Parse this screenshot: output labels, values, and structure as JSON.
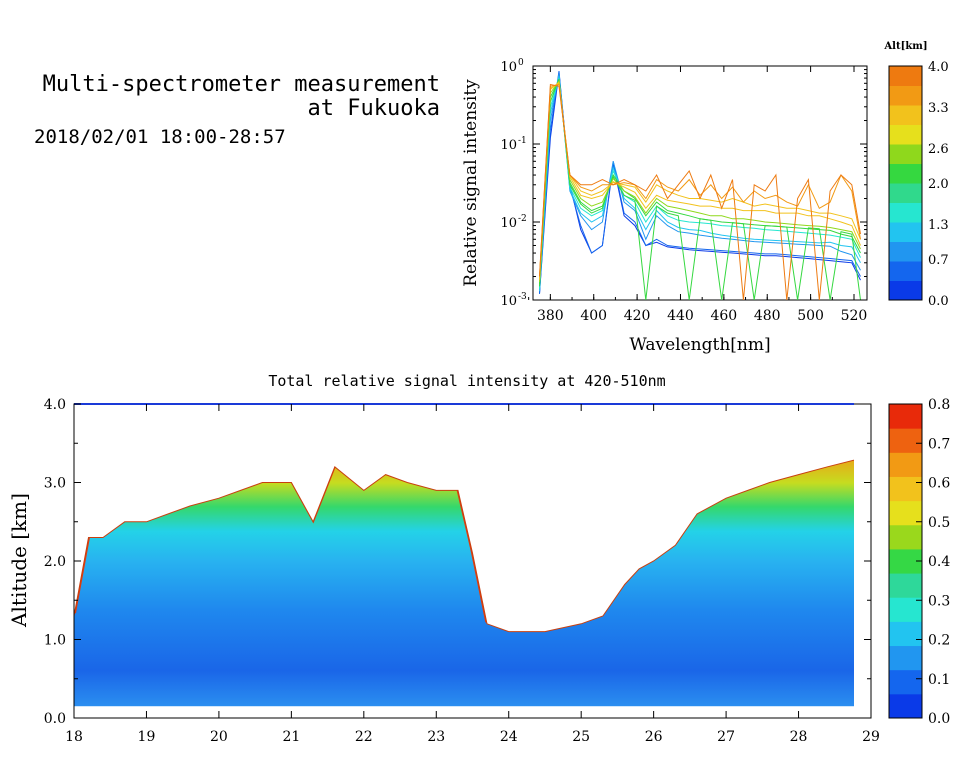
{
  "header": {
    "title_line1": "Multi-spectrometer measurement",
    "title_line2": "at Fukuoka",
    "timestamp": "2018/02/01 18:00-28:57"
  },
  "colors": {
    "alt_scale": [
      "#0a3ae8",
      "#1466ee",
      "#2196f0",
      "#22c4f0",
      "#26e6d0",
      "#30d98c",
      "#35d840",
      "#8fd81c",
      "#e6e01c",
      "#f2c21c",
      "#f29a14",
      "#ee7a10"
    ],
    "intensity_scale": [
      "#0a3ae8",
      "#1466ee",
      "#2196f0",
      "#22c4f0",
      "#26e6d0",
      "#2ed89a",
      "#35d845",
      "#9ad81c",
      "#e6e01c",
      "#f2c21c",
      "#f29a14",
      "#ee6210",
      "#e82a0a"
    ]
  },
  "chart_data": [
    {
      "type": "line",
      "title": "",
      "xlabel": "Wavelength[nm]",
      "ylabel": "Relative signal intensity",
      "yscale": "log",
      "xlim": [
        372,
        526
      ],
      "ylim": [
        0.001,
        1
      ],
      "x_ticks": [
        "380",
        "400",
        "420",
        "440",
        "460",
        "480",
        "500",
        "520"
      ],
      "y_ticks": [
        "10",
        "10",
        "10",
        "10"
      ],
      "y_tick_exponents": [
        "-3",
        "-2",
        "-1",
        "0"
      ],
      "colorbar": {
        "label": "Alt[km]",
        "ticks": [
          "0.0",
          "0.7",
          "1.3",
          "2.0",
          "2.6",
          "3.3",
          "4.0"
        ],
        "range": [
          0.0,
          4.0
        ]
      },
      "x": [
        375,
        380,
        384,
        389,
        394,
        399,
        404,
        409,
        414,
        419,
        424,
        429,
        434,
        439,
        444,
        449,
        454,
        459,
        464,
        469,
        474,
        479,
        484,
        489,
        494,
        499,
        504,
        509,
        514,
        519,
        523
      ],
      "series": [
        {
          "altitude": 0.2,
          "values": [
            0.0012,
            0.12,
            0.82,
            0.03,
            0.008,
            0.004,
            0.005,
            0.055,
            0.012,
            0.009,
            0.005,
            0.0055,
            0.0048,
            0.0046,
            0.0044,
            0.0043,
            0.0042,
            0.0041,
            0.004,
            0.0039,
            0.0038,
            0.0037,
            0.0037,
            0.0036,
            0.0035,
            0.0034,
            0.0033,
            0.0032,
            0.0031,
            0.003,
            0.0018
          ]
        },
        {
          "altitude": 0.5,
          "values": [
            0.0012,
            0.15,
            0.86,
            0.028,
            0.009,
            0.004,
            0.005,
            0.06,
            0.013,
            0.01,
            0.005,
            0.006,
            0.005,
            0.0048,
            0.0046,
            0.0045,
            0.0044,
            0.0043,
            0.0042,
            0.0041,
            0.004,
            0.0039,
            0.0039,
            0.0038,
            0.0037,
            0.0036,
            0.0035,
            0.0034,
            0.0033,
            0.0032,
            0.002
          ]
        },
        {
          "altitude": 0.9,
          "values": [
            0.0013,
            0.2,
            0.8,
            0.025,
            0.012,
            0.008,
            0.01,
            0.06,
            0.018,
            0.014,
            0.006,
            0.012,
            0.009,
            0.0075,
            0.0072,
            0.0068,
            0.0065,
            0.0062,
            0.006,
            0.0058,
            0.0056,
            0.0055,
            0.0054,
            0.0053,
            0.0052,
            0.0051,
            0.005,
            0.0049,
            0.0042,
            0.0038,
            0.0024
          ]
        },
        {
          "altitude": 1.3,
          "values": [
            0.0013,
            0.25,
            0.75,
            0.026,
            0.013,
            0.01,
            0.012,
            0.05,
            0.02,
            0.015,
            0.008,
            0.014,
            0.01,
            0.0085,
            0.008,
            0.0078,
            0.0072,
            0.0068,
            0.0065,
            0.0062,
            0.006,
            0.0059,
            0.0058,
            0.0057,
            0.0056,
            0.0055,
            0.0054,
            0.0055,
            0.005,
            0.0048,
            0.003
          ]
        },
        {
          "altitude": 1.6,
          "values": [
            0.0014,
            0.3,
            0.7,
            0.028,
            0.015,
            0.012,
            0.014,
            0.045,
            0.022,
            0.018,
            0.01,
            0.016,
            0.012,
            0.0105,
            0.01,
            0.0098,
            0.0095,
            0.009,
            0.0088,
            0.0085,
            0.0083,
            0.008,
            0.0078,
            0.0076,
            0.0074,
            0.0072,
            0.007,
            0.0068,
            0.0064,
            0.006,
            0.0035
          ]
        },
        {
          "altitude": 2.0,
          "values": [
            0.0015,
            0.35,
            0.68,
            0.03,
            0.017,
            0.013,
            0.015,
            0.04,
            0.025,
            0.02,
            0.012,
            0.018,
            0.014,
            0.013,
            0.012,
            0.011,
            0.0105,
            0.01,
            0.0098,
            0.0095,
            0.0092,
            0.009,
            0.0088,
            0.0086,
            0.0084,
            0.0082,
            0.008,
            0.0078,
            0.007,
            0.0065,
            0.004
          ]
        },
        {
          "altitude": 2.3,
          "values": [
            0.0016,
            0.4,
            0.66,
            0.032,
            0.018,
            0.014,
            0.016,
            0.038,
            0.022,
            0.019,
            0.001,
            0.016,
            0.013,
            0.012,
            0.001,
            0.011,
            0.0105,
            0.001,
            0.0098,
            0.0095,
            0.001,
            0.009,
            0.0088,
            0.0086,
            0.001,
            0.0084,
            0.0082,
            0.001,
            0.0075,
            0.007,
            0.001
          ]
        },
        {
          "altitude": 2.6,
          "values": [
            0.0017,
            0.45,
            0.64,
            0.035,
            0.02,
            0.016,
            0.018,
            0.036,
            0.025,
            0.021,
            0.013,
            0.02,
            0.016,
            0.015,
            0.014,
            0.013,
            0.012,
            0.012,
            0.011,
            0.011,
            0.0105,
            0.01,
            0.0098,
            0.0095,
            0.0092,
            0.009,
            0.0088,
            0.0085,
            0.008,
            0.0075,
            0.0045
          ]
        },
        {
          "altitude": 3.0,
          "values": [
            0.0018,
            0.5,
            0.62,
            0.038,
            0.022,
            0.02,
            0.022,
            0.033,
            0.028,
            0.024,
            0.015,
            0.022,
            0.019,
            0.018,
            0.017,
            0.016,
            0.016,
            0.015,
            0.015,
            0.014,
            0.014,
            0.014,
            0.013,
            0.013,
            0.013,
            0.012,
            0.012,
            0.011,
            0.01,
            0.009,
            0.005
          ]
        },
        {
          "altitude": 3.3,
          "values": [
            0.0019,
            0.52,
            0.6,
            0.04,
            0.025,
            0.022,
            0.025,
            0.032,
            0.03,
            0.028,
            0.018,
            0.03,
            0.025,
            0.022,
            0.02,
            0.02,
            0.019,
            0.018,
            0.02,
            0.018,
            0.016,
            0.017,
            0.016,
            0.015,
            0.015,
            0.014,
            0.013,
            0.013,
            0.012,
            0.011,
            0.006
          ]
        },
        {
          "altitude": 3.6,
          "values": [
            0.002,
            0.55,
            0.58,
            0.04,
            0.028,
            0.025,
            0.03,
            0.03,
            0.032,
            0.03,
            0.02,
            0.035,
            0.028,
            0.025,
            0.035,
            0.022,
            0.03,
            0.02,
            0.028,
            0.018,
            0.025,
            0.02,
            0.022,
            0.018,
            0.016,
            0.03,
            0.015,
            0.018,
            0.04,
            0.025,
            0.006
          ]
        },
        {
          "altitude": 3.9,
          "values": [
            0.002,
            0.58,
            0.55,
            0.04,
            0.03,
            0.03,
            0.035,
            0.03,
            0.035,
            0.03,
            0.025,
            0.04,
            0.02,
            0.03,
            0.045,
            0.02,
            0.04,
            0.015,
            0.035,
            0.001,
            0.03,
            0.025,
            0.04,
            0.001,
            0.02,
            0.035,
            0.001,
            0.025,
            0.04,
            0.03,
            0.007
          ]
        }
      ]
    },
    {
      "type": "heatmap",
      "title": "Total relative signal intensity at 420-510nm",
      "xlabel": "",
      "ylabel": "Altitude [km]",
      "xlim": [
        18,
        29
      ],
      "ylim": [
        0,
        4
      ],
      "x_ticks": [
        "18",
        "19",
        "20",
        "21",
        "22",
        "23",
        "24",
        "25",
        "26",
        "27",
        "28",
        "29"
      ],
      "y_ticks": [
        "0.0",
        "1.0",
        "2.0",
        "3.0",
        "4.0"
      ],
      "colorbar": {
        "ticks": [
          "0.0",
          "0.1",
          "0.2",
          "0.3",
          "0.4",
          "0.5",
          "0.6",
          "0.7",
          "0.8"
        ],
        "range": [
          0.0,
          0.8
        ]
      },
      "data_extent": {
        "x": [
          18.0,
          28.83
        ],
        "y": [
          0.15,
          4.0
        ]
      },
      "no_signal_region_color": "#ffffff",
      "cloud_base_km": [
        [
          18.0,
          1.3
        ],
        [
          18.2,
          2.3
        ],
        [
          18.4,
          2.3
        ],
        [
          18.7,
          2.5
        ],
        [
          19.0,
          2.5
        ],
        [
          19.3,
          2.6
        ],
        [
          19.6,
          2.7
        ],
        [
          20.0,
          2.8
        ],
        [
          20.3,
          2.9
        ],
        [
          20.6,
          3.0
        ],
        [
          21.0,
          3.0
        ],
        [
          21.3,
          2.5
        ],
        [
          21.6,
          3.2
        ],
        [
          22.0,
          2.9
        ],
        [
          22.3,
          3.1
        ],
        [
          22.6,
          3.0
        ],
        [
          23.0,
          2.9
        ],
        [
          23.3,
          2.9
        ],
        [
          23.5,
          2.1
        ],
        [
          23.7,
          1.2
        ],
        [
          24.0,
          1.1
        ],
        [
          24.5,
          1.1
        ],
        [
          25.0,
          1.2
        ],
        [
          25.3,
          1.3
        ],
        [
          25.6,
          1.7
        ],
        [
          25.8,
          1.9
        ],
        [
          26.0,
          2.0
        ],
        [
          26.3,
          2.2
        ],
        [
          26.6,
          2.6
        ],
        [
          27.0,
          2.8
        ],
        [
          27.3,
          2.9
        ],
        [
          27.6,
          3.0
        ],
        [
          28.0,
          3.1
        ],
        [
          28.4,
          3.2
        ],
        [
          28.83,
          3.3
        ]
      ]
    }
  ]
}
